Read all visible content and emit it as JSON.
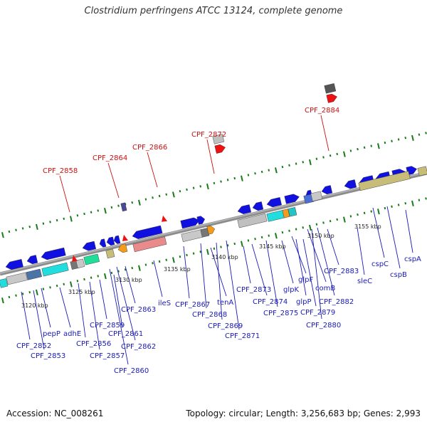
{
  "title": "Clostridium perfringens ATCC 13124, complete genome",
  "footer": {
    "accession": "Accession: NC_008261",
    "topology": "Topology: circular; Length: 3,256,683 bp; Genes: 2,993"
  },
  "scale_ticks": [
    "3120 kbp",
    "3125 kbp",
    "3130 kbp",
    "3135 kbp",
    "3140 kbp",
    "3145 kbp",
    "3150 kbp",
    "3155 kbp"
  ],
  "red_labels": [
    "CPF_2858",
    "CPF_2864",
    "CPF_2866",
    "CPF_2872",
    "CPF_2884"
  ],
  "blue_labels": [
    "CPF_2852",
    "CPF_2853",
    "pepP",
    "adhE",
    "CPF_2856",
    "CPF_2857",
    "CPF_2859",
    "CPF_2860",
    "CPF_2861",
    "CPF_2862",
    "CPF_2863",
    "ileS",
    "CPF_2867",
    "CPF_2868",
    "tenA",
    "CPF_2869",
    "CPF_2871",
    "CPF_2873",
    "CPF_2874",
    "CPF_2875",
    "glpK",
    "glpF",
    "glpP",
    "CPF_2879",
    "comB",
    "CPF_2880",
    "CPF_2882",
    "CPF_2883",
    "sleC",
    "cspC",
    "cspB",
    "cspA"
  ],
  "colors": {
    "backbone": "#888888",
    "forward_gene": "#1010e0",
    "red_marker": "#ee1111",
    "tick_green": "#1a7a1a"
  }
}
